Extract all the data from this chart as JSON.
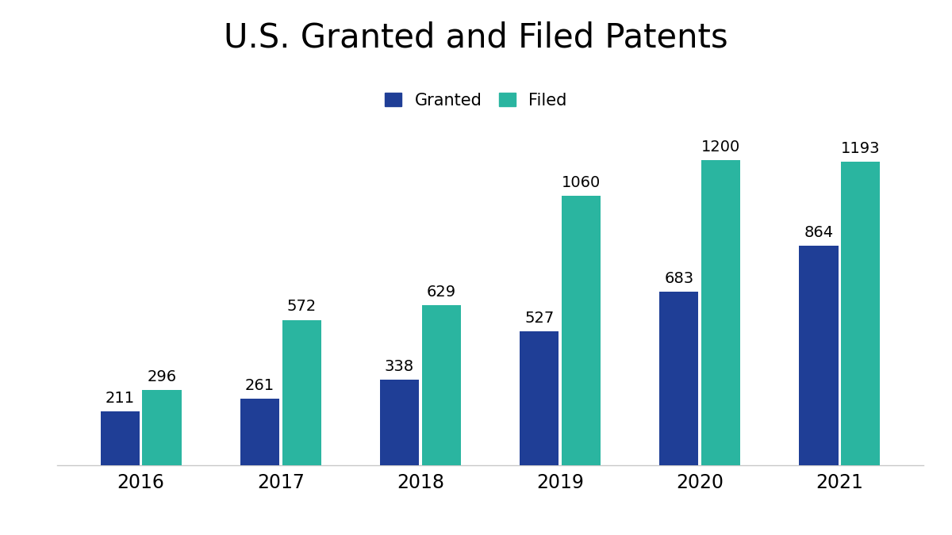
{
  "title": "U.S. Granted and Filed Patents",
  "years": [
    "2016",
    "2017",
    "2018",
    "2019",
    "2020",
    "2021"
  ],
  "granted": [
    211,
    261,
    338,
    527,
    683,
    864
  ],
  "filed": [
    296,
    572,
    629,
    1060,
    1200,
    1193
  ],
  "granted_color": "#1f3e96",
  "filed_color": "#2ab5a0",
  "background_color": "#ffffff",
  "bar_width": 0.28,
  "ylim": [
    0,
    1450
  ],
  "title_fontsize": 30,
  "legend_fontsize": 15,
  "label_fontsize": 14,
  "tick_fontsize": 17,
  "legend_labels": [
    "Granted",
    "Filed"
  ]
}
